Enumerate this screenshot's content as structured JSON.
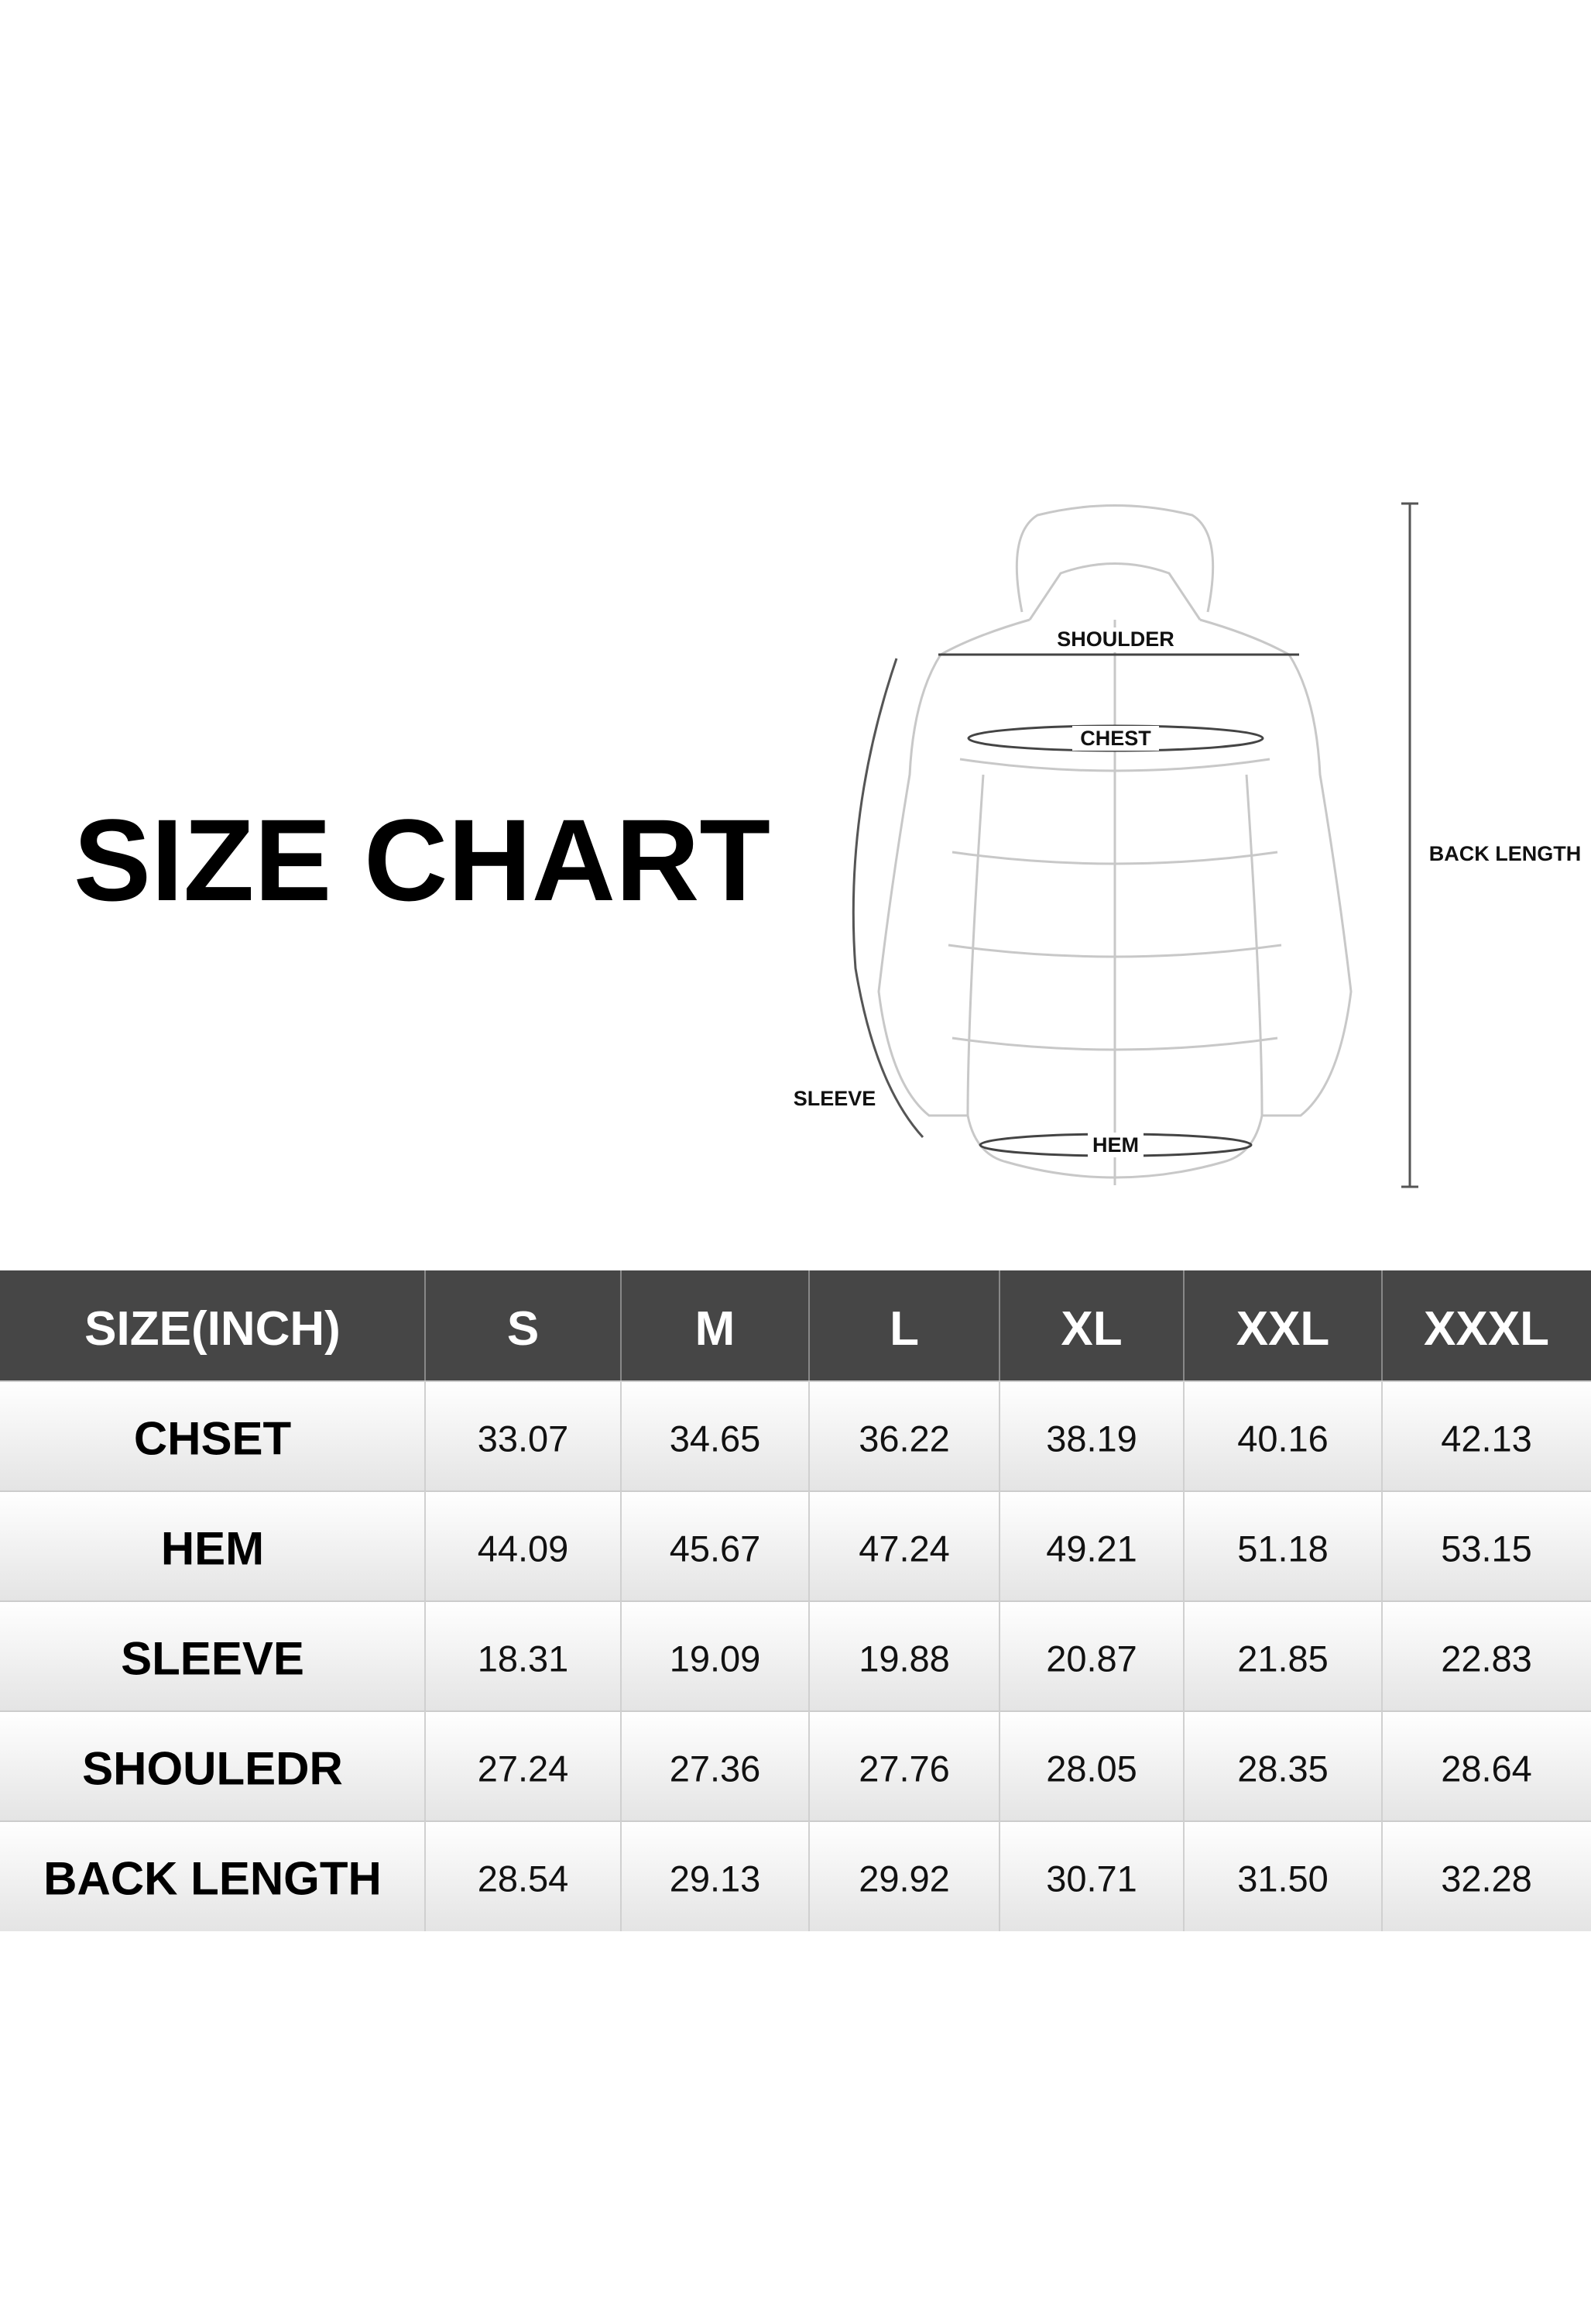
{
  "title": "SIZE CHART",
  "diagram_labels": {
    "shoulder": "SHOULDER",
    "chest": "CHEST",
    "back_length": "BACK LENGTH",
    "sleeve": "SLEEVE",
    "hem": "HEM"
  },
  "table": {
    "header": [
      "SIZE(INCH)",
      "S",
      "M",
      "L",
      "XL",
      "XXL",
      "XXXL"
    ],
    "rows": [
      [
        "CHSET",
        "33.07",
        "34.65",
        "36.22",
        "38.19",
        "40.16",
        "42.13"
      ],
      [
        "HEM",
        "44.09",
        "45.67",
        "47.24",
        "49.21",
        "51.18",
        "53.15"
      ],
      [
        "SLEEVE",
        "18.31",
        "19.09",
        "19.88",
        "20.87",
        "21.85",
        "22.83"
      ],
      [
        "SHOULEDR",
        "27.24",
        "27.36",
        "27.76",
        "28.05",
        "28.35",
        "28.64"
      ],
      [
        "BACK LENGTH",
        "28.54",
        "29.13",
        "29.92",
        "30.71",
        "31.50",
        "32.28"
      ]
    ]
  }
}
